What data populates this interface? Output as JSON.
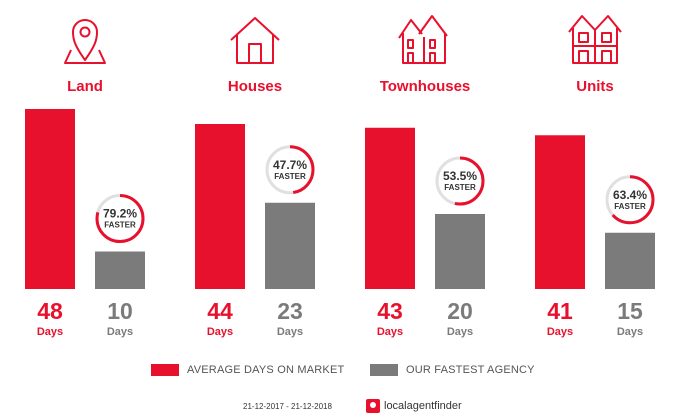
{
  "chart_data": {
    "type": "bar",
    "categories": [
      "Land",
      "Houses",
      "Townhouses",
      "Units"
    ],
    "icons": [
      "map-pin-icon",
      "house-icon",
      "townhouses-icon",
      "units-icon"
    ],
    "series": [
      {
        "name": "AVERAGE DAYS ON MARKET",
        "values": [
          48,
          44,
          43,
          41
        ],
        "color": "#e8112d"
      },
      {
        "name": "OUR FASTEST AGENCY",
        "values": [
          10,
          23,
          20,
          15
        ],
        "color": "#7b7b7b"
      }
    ],
    "faster_pct": [
      "79.2%",
      "47.7%",
      "53.5%",
      "63.4%"
    ],
    "faster_fraction": [
      0.792,
      0.477,
      0.535,
      0.634
    ],
    "faster_label": "FASTER",
    "unit_label": "Days",
    "ylim": [
      0,
      52
    ]
  },
  "legend": {
    "avg_label": "AVERAGE DAYS ON MARKET",
    "fast_label": "OUR FASTEST AGENCY"
  },
  "footer": {
    "date_range": "21-12-2017 - 21-12-2018",
    "brand": "localagentfinder"
  },
  "colors": {
    "accent": "#e8112d",
    "grey": "#7b7b7b",
    "ring_track": "#e0e0e0"
  }
}
